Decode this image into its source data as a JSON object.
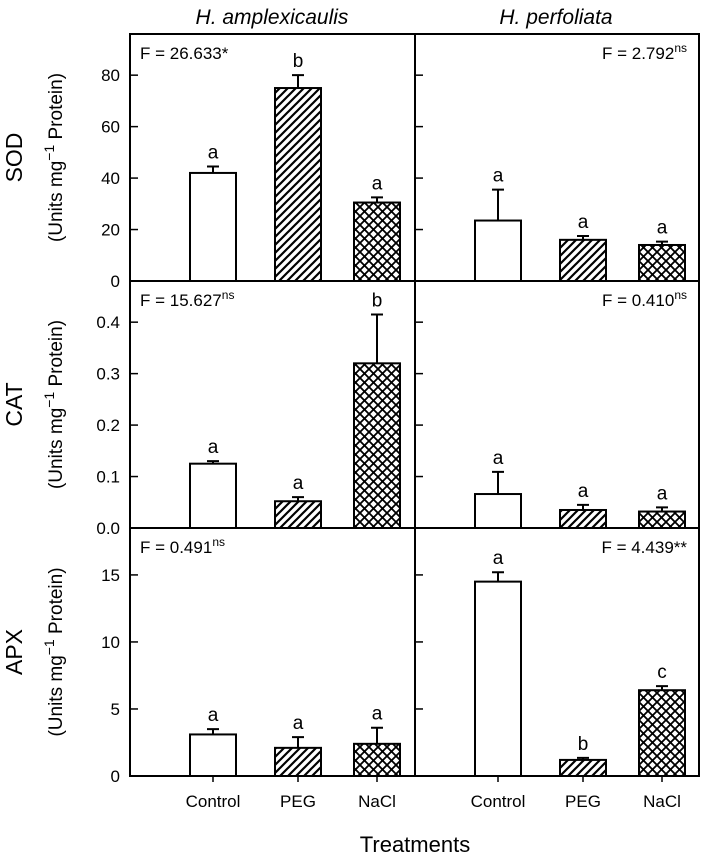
{
  "chart_data": {
    "type": "bar",
    "xlabel": "Treatments",
    "categories": [
      "Control",
      "PEG",
      "NaCl"
    ],
    "patterns": [
      "none",
      "diagonal-hatch",
      "crosshatch"
    ],
    "columns": [
      "H. amplexicaulis",
      "H. perfoliata"
    ],
    "rows": [
      {
        "name": "SOD",
        "ylabel_prefix": "(Units mg",
        "ylabel_exp": "−1",
        "ylabel_suffix": " Protein)",
        "ylim": [
          0,
          96
        ],
        "ticks": [
          "0",
          "20",
          "40",
          "60",
          "80"
        ],
        "tick_values": [
          0,
          20,
          40,
          60,
          80
        ],
        "panels": [
          {
            "column": "H. amplexicaulis",
            "values": [
              42,
              75,
              30.5
            ],
            "errors": [
              2.5,
              5,
              2
            ],
            "letters": [
              "a",
              "b",
              "a"
            ],
            "f_text": "F = 26.633*",
            "f_sup": "",
            "f_pos": "left"
          },
          {
            "column": "H. perfoliata",
            "values": [
              23.5,
              16,
              14
            ],
            "errors": [
              12,
              1.5,
              1.3
            ],
            "letters": [
              "a",
              "a",
              "a"
            ],
            "f_text": "F = 2.792",
            "f_sup": "ns",
            "f_pos": "right"
          }
        ]
      },
      {
        "name": "CAT",
        "ylabel_prefix": "(Units mg",
        "ylabel_exp": "−1",
        "ylabel_suffix": " Protein)",
        "ylim": [
          0,
          0.48
        ],
        "ticks": [
          "0.0",
          "0.1",
          "0.2",
          "0.3",
          "0.4"
        ],
        "tick_values": [
          0,
          0.1,
          0.2,
          0.3,
          0.4
        ],
        "panels": [
          {
            "column": "H. amplexicaulis",
            "values": [
              0.125,
              0.052,
              0.32
            ],
            "errors": [
              0.005,
              0.008,
              0.095
            ],
            "letters": [
              "a",
              "a",
              "b"
            ],
            "f_text": "F = 15.627",
            "f_sup": "ns",
            "f_pos": "left"
          },
          {
            "column": "H. perfoliata",
            "values": [
              0.066,
              0.035,
              0.032
            ],
            "errors": [
              0.043,
              0.01,
              0.008
            ],
            "letters": [
              "a",
              "a",
              "a"
            ],
            "f_text": "F = 0.410",
            "f_sup": "ns",
            "f_pos": "right"
          }
        ]
      },
      {
        "name": "APX",
        "ylabel_prefix": "(Units mg",
        "ylabel_exp": "−1",
        "ylabel_suffix": " Protein)",
        "ylim": [
          0,
          18.5
        ],
        "ticks": [
          "0",
          "5",
          "10",
          "15"
        ],
        "tick_values": [
          0,
          5,
          10,
          15
        ],
        "panels": [
          {
            "column": "H. amplexicaulis",
            "values": [
              3.1,
              2.1,
              2.4
            ],
            "errors": [
              0.4,
              0.8,
              1.2
            ],
            "letters": [
              "a",
              "a",
              "a"
            ],
            "f_text": "F = 0.491",
            "f_sup": "ns",
            "f_pos": "left"
          },
          {
            "column": "H. perfoliata",
            "values": [
              14.5,
              1.2,
              6.4
            ],
            "errors": [
              0.7,
              0.15,
              0.3
            ],
            "letters": [
              "a",
              "b",
              "c"
            ],
            "f_text": "F = 4.439**",
            "f_sup": "",
            "f_pos": "right"
          }
        ]
      }
    ]
  }
}
